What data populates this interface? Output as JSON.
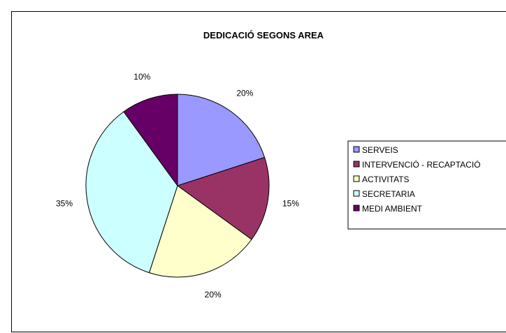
{
  "chart_data": {
    "type": "pie",
    "title": "DEDICACIÓ SEGONS AREA",
    "categories": [
      "SERVEIS",
      "INTERVENCIÓ - RECAPTACIÓ",
      "ACTIVITATS",
      "SECRETARIA",
      "MEDI AMBIENT"
    ],
    "values": [
      20,
      15,
      20,
      35,
      10
    ],
    "labels": [
      "20%",
      "15%",
      "20%",
      "35%",
      "10%"
    ],
    "colors": [
      "#9999ff",
      "#993366",
      "#ffffcc",
      "#ccffff",
      "#660066"
    ],
    "legend_position": "right",
    "start_angle": "12 o'clock",
    "direction": "clockwise"
  }
}
